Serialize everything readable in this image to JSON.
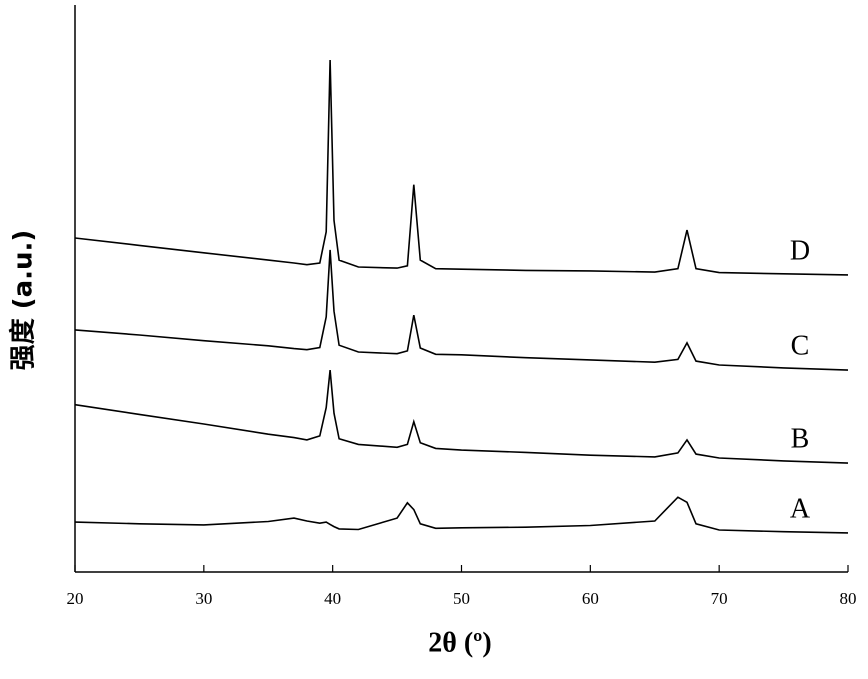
{
  "chart_data": {
    "type": "line",
    "xlabel": "2θ (º)",
    "ylabel": "强度 (a.u.)",
    "x": [
      20,
      25,
      30,
      35,
      37,
      38,
      39,
      39.5,
      39.8,
      40.1,
      40.5,
      42,
      45,
      45.8,
      46.3,
      46.8,
      48,
      50,
      55,
      60,
      65,
      66.8,
      67.5,
      68.2,
      70,
      75,
      80
    ],
    "series": [
      {
        "name": "A",
        "color": "#000000",
        "values": [
          8.8,
          8.5,
          8.3,
          8.9,
          9.5,
          9.0,
          8.6,
          8.8,
          8.4,
          8.0,
          7.6,
          7.5,
          9.5,
          12.2,
          11,
          8.5,
          7.7,
          7.8,
          7.9,
          8.2,
          9,
          13.2,
          12.3,
          8.5,
          7.4,
          7.1,
          6.9
        ]
      },
      {
        "name": "B",
        "color": "#000000",
        "values": [
          29.5,
          27.8,
          26.1,
          24.3,
          23.7,
          23.3,
          24,
          29,
          35.6,
          28,
          23.5,
          22.5,
          22,
          22.5,
          26.5,
          22.8,
          21.8,
          21.5,
          21.1,
          20.6,
          20.3,
          21,
          23.3,
          20.8,
          20.1,
          19.6,
          19.2
        ]
      },
      {
        "name": "C",
        "color": "#000000",
        "values": [
          42.7,
          41.8,
          40.8,
          39.9,
          39.4,
          39.2,
          39.6,
          45,
          56.8,
          46,
          40,
          38.8,
          38.5,
          39,
          45.3,
          39.5,
          38.4,
          38.3,
          37.8,
          37.4,
          37,
          37.5,
          40.4,
          37.2,
          36.5,
          36,
          35.6
        ]
      },
      {
        "name": "D",
        "color": "#000000",
        "values": [
          58.9,
          57.6,
          56.3,
          55.0,
          54.5,
          54.2,
          54.5,
          60,
          90.3,
          62,
          55,
          53.8,
          53.6,
          54,
          68.3,
          55,
          53.5,
          53.4,
          53.2,
          53.1,
          52.9,
          53.5,
          60.3,
          53.5,
          52.8,
          52.6,
          52.4
        ]
      }
    ],
    "xlim": [
      20,
      80
    ],
    "xticks": [
      20,
      30,
      40,
      50,
      60,
      70,
      80
    ],
    "ylim": [
      0,
      100
    ]
  }
}
